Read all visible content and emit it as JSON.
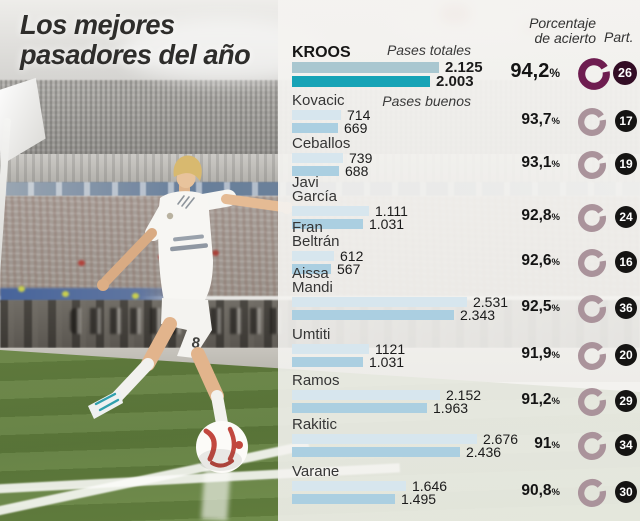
{
  "title": {
    "line1": "Los mejores",
    "line2": "pasadores del año"
  },
  "chart": {
    "legend": {
      "total": "Pases totales",
      "good": "Pases buenos"
    },
    "headers": {
      "pct_line1": "Porcentaje",
      "pct_line2": "de acierto",
      "part": "Part."
    },
    "pct_suffix": "%",
    "players": [
      {
        "name": "KROOS",
        "highlight": true,
        "total": 2125,
        "good": 2003,
        "total_label": "2.125",
        "good_label": "2.003",
        "pct": 94.2,
        "pct_label": "94,2",
        "part": "26"
      },
      {
        "name": "Kovacic",
        "highlight": false,
        "total": 714,
        "good": 669,
        "total_label": "714",
        "good_label": "669",
        "pct": 93.7,
        "pct_label": "93,7",
        "part": "17"
      },
      {
        "name": "Ceballos",
        "highlight": false,
        "total": 739,
        "good": 688,
        "total_label": "739",
        "good_label": "688",
        "pct": 93.1,
        "pct_label": "93,1",
        "part": "19"
      },
      {
        "name": "Javi\nGarcía",
        "highlight": false,
        "total": 1111,
        "good": 1031,
        "total_label": "1.111",
        "good_label": "1.031",
        "pct": 92.8,
        "pct_label": "92,8",
        "part": "24"
      },
      {
        "name": "Fran\nBeltrán",
        "highlight": false,
        "total": 612,
        "good": 567,
        "total_label": "612",
        "good_label": "567",
        "pct": 92.6,
        "pct_label": "92,6",
        "part": "16"
      },
      {
        "name": "Aissa\nMandi",
        "highlight": false,
        "total": 2531,
        "good": 2343,
        "total_label": "2.531",
        "good_label": "2.343",
        "pct": 92.5,
        "pct_label": "92,5",
        "part": "36"
      },
      {
        "name": "Umtiti",
        "highlight": false,
        "total": 1121,
        "good": 1031,
        "total_label": "1121",
        "good_label": "1.031",
        "pct": 91.9,
        "pct_label": "91,9",
        "part": "20"
      },
      {
        "name": "Ramos",
        "highlight": false,
        "total": 2152,
        "good": 1963,
        "total_label": "2.152",
        "good_label": "1.963",
        "pct": 91.2,
        "pct_label": "91,2",
        "part": "29"
      },
      {
        "name": "Rakitic",
        "highlight": false,
        "total": 2676,
        "good": 2436,
        "total_label": "2.676",
        "good_label": "2.436",
        "pct": 91.0,
        "pct_label": "91",
        "part": "34"
      },
      {
        "name": "Varane",
        "highlight": false,
        "total": 1646,
        "good": 1495,
        "total_label": "1.646",
        "good_label": "1.495",
        "pct": 90.8,
        "pct_label": "90,8",
        "part": "30"
      }
    ]
  },
  "chart_data": {
    "type": "bar",
    "orientation": "horizontal",
    "title": "Los mejores pasadores del año",
    "categories": [
      "Kroos",
      "Kovacic",
      "Ceballos",
      "Javi García",
      "Fran Beltrán",
      "Aissa Mandi",
      "Umtiti",
      "Ramos",
      "Rakitic",
      "Varane"
    ],
    "series": [
      {
        "name": "Pases totales",
        "values": [
          2125,
          714,
          739,
          1111,
          612,
          2531,
          1121,
          2152,
          2676,
          1646
        ]
      },
      {
        "name": "Pases buenos",
        "values": [
          2003,
          669,
          688,
          1031,
          567,
          2343,
          1031,
          1963,
          2436,
          1495
        ]
      }
    ],
    "accuracy_percent": [
      94.2,
      93.7,
      93.1,
      92.8,
      92.6,
      92.5,
      91.9,
      91.2,
      91.0,
      90.8
    ],
    "partidos": [
      26,
      17,
      19,
      24,
      16,
      36,
      20,
      29,
      34,
      30
    ],
    "legend_position": "top",
    "grid": false
  },
  "colors": {
    "bar_total": "#d7e6ee",
    "bar_good": "#abcfe1",
    "bar_total_highlight": "#a9c7d0",
    "bar_good_highlight": "#16a3b6",
    "donut": "#aa939b",
    "donut_highlight": "#6e1d50",
    "badge": "#151413",
    "badge_highlight": "#330d25",
    "panel_bg": "#f4f3f0",
    "title_text": "#2e2d2b"
  }
}
